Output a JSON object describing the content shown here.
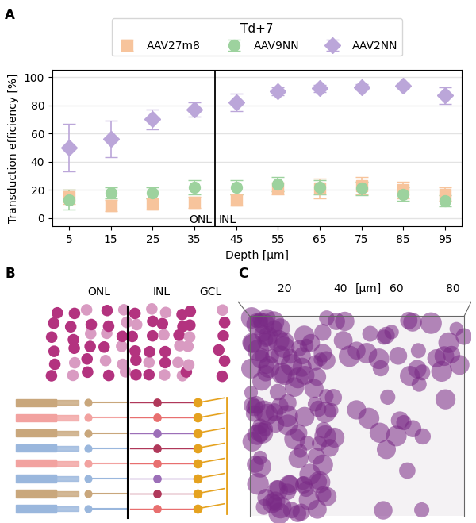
{
  "panel_labels": [
    "A",
    "B",
    "C"
  ],
  "chart_data": {
    "type": "scatter",
    "legend_title": "Td+7",
    "legend": "upper center",
    "grid": true,
    "x_label": "Depth [μm]",
    "y_label": "Transduction efficiency [%]",
    "x": [
      5,
      15,
      25,
      35,
      45,
      55,
      65,
      75,
      85,
      95
    ],
    "xlim": [
      1,
      99
    ],
    "xticks": [
      5,
      15,
      25,
      35,
      45,
      55,
      65,
      75,
      85,
      95
    ],
    "ylim": [
      -6,
      105
    ],
    "yticks": [
      0,
      20,
      40,
      60,
      80,
      100
    ],
    "divider": {
      "x": 40,
      "labels": [
        "ONL",
        "INL"
      ]
    },
    "series": [
      {
        "name": "AAV27m8",
        "color": "#f7c49c",
        "marker": "square",
        "values": [
          15,
          9,
          10,
          11,
          13,
          21,
          21,
          23,
          20,
          17
        ],
        "errors": [
          5,
          4,
          4,
          4,
          4,
          4,
          7,
          6,
          6,
          5
        ]
      },
      {
        "name": "AAV9NN",
        "color": "#9dd29e",
        "marker": "circle",
        "values": [
          13,
          18,
          18,
          22,
          22,
          24,
          22,
          21,
          17,
          12
        ],
        "errors": [
          7,
          4,
          4,
          5,
          5,
          5,
          5,
          5,
          5,
          4
        ]
      },
      {
        "name": "AAV2NN",
        "color": "#bba6d9",
        "marker": "diamond",
        "values": [
          50,
          56,
          70,
          77,
          82,
          90,
          92,
          93,
          94,
          87
        ],
        "errors": [
          17,
          13,
          7,
          5,
          6,
          3,
          2.5,
          2,
          2,
          6
        ]
      }
    ]
  },
  "diagram": {
    "layers": [
      "ONL",
      "INL",
      "GCL"
    ]
  },
  "image": {
    "axis_label": "[μm]",
    "ticks": [
      20,
      40,
      60,
      80
    ]
  }
}
